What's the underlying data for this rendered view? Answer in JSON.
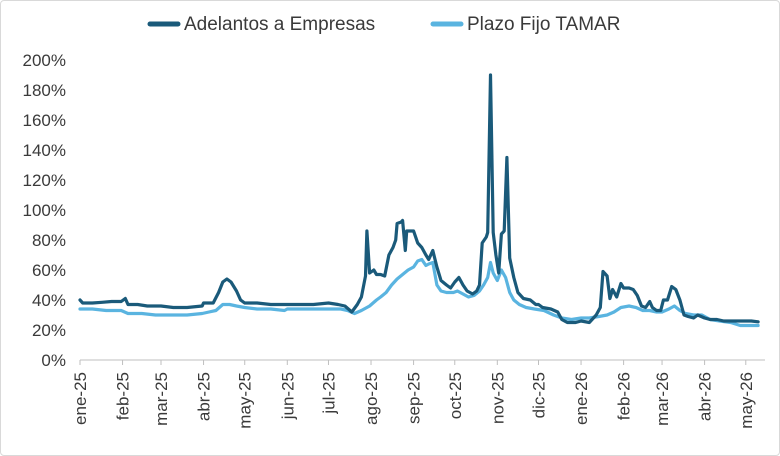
{
  "chart_data": {
    "type": "line",
    "title": "",
    "xlabel": "",
    "ylabel": "",
    "ylim": [
      0,
      200
    ],
    "y_ticks": [
      0,
      20,
      40,
      60,
      80,
      100,
      120,
      140,
      160,
      180,
      200
    ],
    "y_tick_format": "percent",
    "grid": false,
    "legend_position": "top",
    "x_ticks": [
      {
        "date": "2025-01-01",
        "label": "ene-25"
      },
      {
        "date": "2025-02-01",
        "label": "feb-25"
      },
      {
        "date": "2025-03-01",
        "label": "mar-25"
      },
      {
        "date": "2025-04-01",
        "label": "abr-25"
      },
      {
        "date": "2025-05-01",
        "label": "may-25"
      },
      {
        "date": "2025-06-01",
        "label": "jun-25"
      },
      {
        "date": "2025-07-01",
        "label": "jul-25"
      },
      {
        "date": "2025-08-01",
        "label": "ago-25"
      },
      {
        "date": "2025-09-01",
        "label": "sep-25"
      },
      {
        "date": "2025-10-01",
        "label": "oct-25"
      },
      {
        "date": "2025-11-01",
        "label": "nov-25"
      },
      {
        "date": "2025-12-01",
        "label": "dic-25"
      },
      {
        "date": "2026-01-01",
        "label": "ene-26"
      },
      {
        "date": "2026-02-01",
        "label": "feb-26"
      },
      {
        "date": "2026-03-01",
        "label": "mar-26"
      },
      {
        "date": "2026-04-01",
        "label": "abr-26"
      },
      {
        "date": "2026-05-01",
        "label": "may-26"
      }
    ],
    "series": [
      {
        "name": "Adelantos a Empresas",
        "color": "#1a5a7a",
        "points": [
          [
            "2025-01-01",
            40
          ],
          [
            "2025-01-03",
            38
          ],
          [
            "2025-01-10",
            38
          ],
          [
            "2025-01-17",
            38.5
          ],
          [
            "2025-01-24",
            39
          ],
          [
            "2025-01-31",
            39
          ],
          [
            "2025-02-03",
            41
          ],
          [
            "2025-02-05",
            37
          ],
          [
            "2025-02-12",
            37
          ],
          [
            "2025-02-19",
            36
          ],
          [
            "2025-03-01",
            36
          ],
          [
            "2025-03-10",
            35
          ],
          [
            "2025-03-20",
            35
          ],
          [
            "2025-03-31",
            36
          ],
          [
            "2025-04-01",
            38
          ],
          [
            "2025-04-08",
            38
          ],
          [
            "2025-04-12",
            45
          ],
          [
            "2025-04-15",
            52
          ],
          [
            "2025-04-18",
            54
          ],
          [
            "2025-04-21",
            52
          ],
          [
            "2025-04-25",
            46
          ],
          [
            "2025-04-28",
            40
          ],
          [
            "2025-05-01",
            38
          ],
          [
            "2025-05-10",
            38
          ],
          [
            "2025-05-20",
            37
          ],
          [
            "2025-06-01",
            37
          ],
          [
            "2025-06-10",
            37
          ],
          [
            "2025-06-20",
            37
          ],
          [
            "2025-07-01",
            38
          ],
          [
            "2025-07-08",
            37
          ],
          [
            "2025-07-13",
            36
          ],
          [
            "2025-07-18",
            32
          ],
          [
            "2025-07-22",
            37
          ],
          [
            "2025-07-25",
            42
          ],
          [
            "2025-07-28",
            56
          ],
          [
            "2025-07-29",
            86
          ],
          [
            "2025-07-31",
            58
          ],
          [
            "2025-08-03",
            60
          ],
          [
            "2025-08-05",
            57
          ],
          [
            "2025-08-08",
            57
          ],
          [
            "2025-08-11",
            56
          ],
          [
            "2025-08-14",
            70
          ],
          [
            "2025-08-17",
            75
          ],
          [
            "2025-08-19",
            80
          ],
          [
            "2025-08-20",
            91
          ],
          [
            "2025-08-23",
            92
          ],
          [
            "2025-08-24",
            93
          ],
          [
            "2025-08-26",
            73
          ],
          [
            "2025-08-27",
            86
          ],
          [
            "2025-08-30",
            86
          ],
          [
            "2025-09-01",
            86
          ],
          [
            "2025-09-04",
            78
          ],
          [
            "2025-09-07",
            75
          ],
          [
            "2025-09-10",
            70
          ],
          [
            "2025-09-12",
            67
          ],
          [
            "2025-09-15",
            73
          ],
          [
            "2025-09-18",
            62
          ],
          [
            "2025-09-21",
            53
          ],
          [
            "2025-09-25",
            50
          ],
          [
            "2025-09-28",
            48
          ],
          [
            "2025-10-01",
            52
          ],
          [
            "2025-10-04",
            55
          ],
          [
            "2025-10-07",
            50
          ],
          [
            "2025-10-10",
            46
          ],
          [
            "2025-10-14",
            44
          ],
          [
            "2025-10-17",
            46
          ],
          [
            "2025-10-19",
            50
          ],
          [
            "2025-10-21",
            78
          ],
          [
            "2025-10-24",
            82
          ],
          [
            "2025-10-25",
            85
          ],
          [
            "2025-10-27",
            190
          ],
          [
            "2025-10-29",
            85
          ],
          [
            "2025-10-31",
            70
          ],
          [
            "2025-11-02",
            58
          ],
          [
            "2025-11-04",
            84
          ],
          [
            "2025-11-06",
            86
          ],
          [
            "2025-11-08",
            135
          ],
          [
            "2025-11-10",
            68
          ],
          [
            "2025-11-13",
            55
          ],
          [
            "2025-11-16",
            45
          ],
          [
            "2025-11-20",
            41
          ],
          [
            "2025-11-25",
            40
          ],
          [
            "2025-11-29",
            37
          ],
          [
            "2025-12-01",
            37
          ],
          [
            "2025-12-04",
            35
          ],
          [
            "2025-12-10",
            34
          ],
          [
            "2025-12-15",
            32
          ],
          [
            "2025-12-18",
            27
          ],
          [
            "2025-12-22",
            25
          ],
          [
            "2025-12-28",
            25
          ],
          [
            "2026-01-01",
            26
          ],
          [
            "2026-01-07",
            25
          ],
          [
            "2026-01-12",
            30
          ],
          [
            "2026-01-15",
            35
          ],
          [
            "2026-01-17",
            59
          ],
          [
            "2026-01-20",
            56
          ],
          [
            "2026-01-22",
            41
          ],
          [
            "2026-01-24",
            47
          ],
          [
            "2026-01-27",
            42
          ],
          [
            "2026-01-30",
            51
          ],
          [
            "2026-02-01",
            48
          ],
          [
            "2026-02-05",
            48
          ],
          [
            "2026-02-08",
            47
          ],
          [
            "2026-02-11",
            43
          ],
          [
            "2026-02-14",
            36
          ],
          [
            "2026-02-17",
            35
          ],
          [
            "2026-02-20",
            39
          ],
          [
            "2026-02-22",
            35
          ],
          [
            "2026-02-25",
            33
          ],
          [
            "2026-02-28",
            33
          ],
          [
            "2026-03-02",
            40
          ],
          [
            "2026-03-05",
            40
          ],
          [
            "2026-03-08",
            49
          ],
          [
            "2026-03-11",
            47
          ],
          [
            "2026-03-14",
            40
          ],
          [
            "2026-03-17",
            30
          ],
          [
            "2026-03-20",
            29
          ],
          [
            "2026-03-24",
            28
          ],
          [
            "2026-03-27",
            30
          ],
          [
            "2026-04-01",
            28
          ],
          [
            "2026-04-05",
            27
          ],
          [
            "2026-04-10",
            27
          ],
          [
            "2026-04-15",
            26
          ],
          [
            "2026-04-20",
            26
          ],
          [
            "2026-04-25",
            26
          ],
          [
            "2026-05-01",
            26
          ],
          [
            "2026-05-05",
            26
          ],
          [
            "2026-05-10",
            25.5
          ]
        ]
      },
      {
        "name": "Plazo Fijo TAMAR",
        "color": "#5ab4e0",
        "points": [
          [
            "2025-01-01",
            34
          ],
          [
            "2025-01-10",
            34
          ],
          [
            "2025-01-20",
            33
          ],
          [
            "2025-01-31",
            33
          ],
          [
            "2025-02-05",
            31
          ],
          [
            "2025-02-15",
            31
          ],
          [
            "2025-02-25",
            30
          ],
          [
            "2025-03-01",
            30
          ],
          [
            "2025-03-10",
            30
          ],
          [
            "2025-03-20",
            30
          ],
          [
            "2025-03-31",
            31
          ],
          [
            "2025-04-05",
            32
          ],
          [
            "2025-04-10",
            33
          ],
          [
            "2025-04-15",
            37
          ],
          [
            "2025-04-20",
            37
          ],
          [
            "2025-04-25",
            36
          ],
          [
            "2025-05-01",
            35
          ],
          [
            "2025-05-10",
            34
          ],
          [
            "2025-05-20",
            34
          ],
          [
            "2025-05-30",
            33
          ],
          [
            "2025-06-01",
            34
          ],
          [
            "2025-06-10",
            34
          ],
          [
            "2025-06-20",
            34
          ],
          [
            "2025-06-30",
            34
          ],
          [
            "2025-07-05",
            34
          ],
          [
            "2025-07-10",
            34
          ],
          [
            "2025-07-15",
            33
          ],
          [
            "2025-07-20",
            31
          ],
          [
            "2025-07-25",
            33
          ],
          [
            "2025-07-31",
            36
          ],
          [
            "2025-08-05",
            40
          ],
          [
            "2025-08-08",
            42
          ],
          [
            "2025-08-12",
            45
          ],
          [
            "2025-08-16",
            50
          ],
          [
            "2025-08-20",
            54
          ],
          [
            "2025-08-24",
            57
          ],
          [
            "2025-08-28",
            60
          ],
          [
            "2025-09-01",
            62
          ],
          [
            "2025-09-04",
            66
          ],
          [
            "2025-09-07",
            67
          ],
          [
            "2025-09-10",
            63
          ],
          [
            "2025-09-12",
            64
          ],
          [
            "2025-09-15",
            65
          ],
          [
            "2025-09-18",
            50
          ],
          [
            "2025-09-21",
            46
          ],
          [
            "2025-09-25",
            45
          ],
          [
            "2025-09-30",
            45
          ],
          [
            "2025-10-03",
            46
          ],
          [
            "2025-10-07",
            44
          ],
          [
            "2025-10-11",
            42
          ],
          [
            "2025-10-15",
            43
          ],
          [
            "2025-10-19",
            46
          ],
          [
            "2025-10-22",
            50
          ],
          [
            "2025-10-25",
            55
          ],
          [
            "2025-10-27",
            65
          ],
          [
            "2025-10-29",
            58
          ],
          [
            "2025-11-01",
            53
          ],
          [
            "2025-11-04",
            60
          ],
          [
            "2025-11-07",
            55
          ],
          [
            "2025-11-10",
            45
          ],
          [
            "2025-11-13",
            40
          ],
          [
            "2025-11-17",
            37
          ],
          [
            "2025-11-22",
            35
          ],
          [
            "2025-11-28",
            34
          ],
          [
            "2025-12-05",
            33
          ],
          [
            "2025-12-12",
            30
          ],
          [
            "2025-12-18",
            28
          ],
          [
            "2025-12-25",
            27
          ],
          [
            "2026-01-01",
            28
          ],
          [
            "2026-01-07",
            28
          ],
          [
            "2026-01-14",
            29
          ],
          [
            "2026-01-20",
            30
          ],
          [
            "2026-01-25",
            32
          ],
          [
            "2026-01-30",
            35
          ],
          [
            "2026-02-05",
            36
          ],
          [
            "2026-02-10",
            35
          ],
          [
            "2026-02-15",
            33
          ],
          [
            "2026-02-20",
            33
          ],
          [
            "2026-02-25",
            32
          ],
          [
            "2026-03-01",
            32
          ],
          [
            "2026-03-06",
            34
          ],
          [
            "2026-03-10",
            36
          ],
          [
            "2026-03-14",
            33
          ],
          [
            "2026-03-18",
            31
          ],
          [
            "2026-03-24",
            30
          ],
          [
            "2026-03-30",
            30
          ],
          [
            "2026-04-05",
            27
          ],
          [
            "2026-04-12",
            26
          ],
          [
            "2026-04-20",
            25
          ],
          [
            "2026-04-27",
            23
          ],
          [
            "2026-05-03",
            23
          ],
          [
            "2026-05-10",
            23
          ]
        ]
      }
    ]
  }
}
